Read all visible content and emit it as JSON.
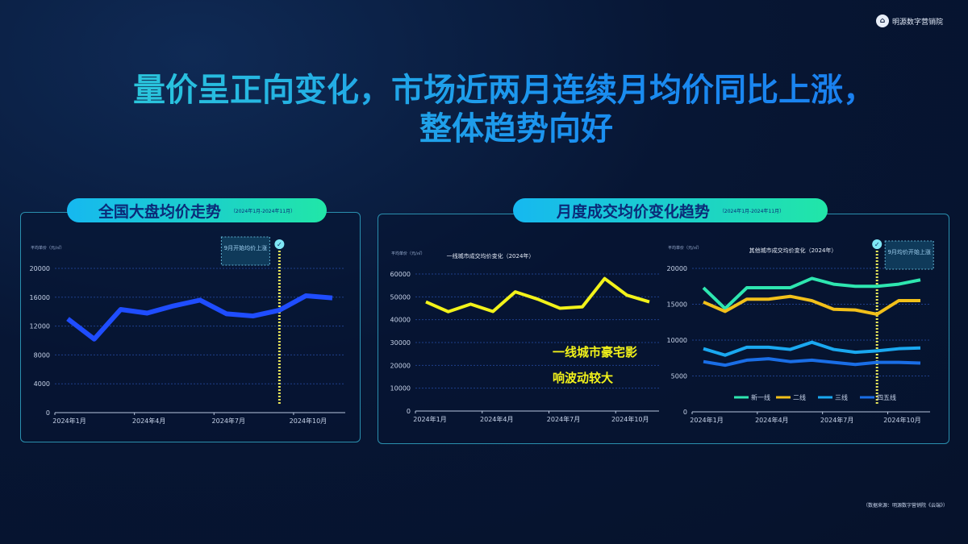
{
  "logo": {
    "text": "明源数字营销院"
  },
  "title": {
    "line1": "量价呈正向变化，市场近两月连续月均价同比上涨，",
    "line2": "整体趋势向好"
  },
  "footer": "（数据来源：明源数字营销院《云端》）",
  "panels": [
    {
      "title": "全国大盘均价走势",
      "subtitle": "（2024年1月-2024年11月）"
    },
    {
      "title": "月度成交均价变化趋势",
      "subtitle": "（2024年1月-2024年11月）"
    }
  ],
  "chart_data": [
    {
      "type": "line",
      "title": "",
      "ylabel": "平均单价（元/㎡）",
      "ylim": [
        0,
        20000
      ],
      "yticks": [
        "0",
        "4000",
        "8000",
        "12000",
        "16000",
        "20000"
      ],
      "xticks": [
        "2024年1月",
        "2024年4月",
        "2024年7月",
        "2024年10月"
      ],
      "x": [
        "2024年1月",
        "2024年2月",
        "2024年3月",
        "2024年4月",
        "2024年5月",
        "2024年6月",
        "2024年7月",
        "2024年8月",
        "2024年9月",
        "2024年10月",
        "2024年11月"
      ],
      "series": [
        {
          "values": [
            13000,
            10200,
            14300,
            13800,
            14800,
            15600,
            13700,
            13400,
            14200,
            16200,
            15900
          ],
          "color": "#1f4dff"
        }
      ],
      "annotation": {
        "text": "9月开始均价上涨",
        "at": "2024年9月"
      },
      "grid": true
    },
    {
      "type": "line",
      "title": "一线城市成交均价变化（2024年）",
      "ylabel": "平均单价（元/㎡）",
      "ylim": [
        0,
        60000
      ],
      "yticks": [
        "0",
        "10000",
        "20000",
        "30000",
        "40000",
        "50000",
        "60000"
      ],
      "xticks": [
        "2024年1月",
        "2024年4月",
        "2024年7月",
        "2024年10月"
      ],
      "series": [
        {
          "values": [
            47800,
            43500,
            46800,
            43600,
            52200,
            49000,
            45000,
            45600,
            58000,
            50700,
            47800
          ],
          "color": "#f2f21a"
        }
      ],
      "annotation": {
        "text": "一线城市豪宅影响波动较大",
        "line1": "一线城市豪宅影",
        "line2": "响波动较大"
      },
      "grid": true
    },
    {
      "type": "line",
      "title": "其他城市成交均价变化（2024年）",
      "ylabel": "平均单价（元/㎡）",
      "ylim": [
        0,
        20000
      ],
      "yticks": [
        "0",
        "5000",
        "10000",
        "15000",
        "20000"
      ],
      "xticks": [
        "2024年1月",
        "2024年4月",
        "2024年7月",
        "2024年10月"
      ],
      "legend": "bottom",
      "series": [
        {
          "name": "新一线",
          "color": "#2ee6b0",
          "values": [
            17300,
            14400,
            17300,
            17300,
            17300,
            18600,
            17800,
            17500,
            17500,
            17800,
            18400
          ]
        },
        {
          "name": "二线",
          "color": "#f2c01a",
          "values": [
            15300,
            14000,
            15700,
            15700,
            16100,
            15500,
            14300,
            14200,
            13600,
            15500,
            15500
          ]
        },
        {
          "name": "三线",
          "color": "#1aa8f0",
          "values": [
            8800,
            7900,
            9000,
            9000,
            8700,
            9700,
            8700,
            8300,
            8500,
            8800,
            8900
          ]
        },
        {
          "name": "四五线",
          "color": "#1a6ee6",
          "values": [
            7000,
            6500,
            7200,
            7400,
            7000,
            7200,
            6900,
            6600,
            6900,
            6900,
            6800
          ]
        }
      ],
      "annotation": {
        "text": "9月均价开始上涨",
        "at": "2024年9月"
      },
      "grid": true
    }
  ]
}
